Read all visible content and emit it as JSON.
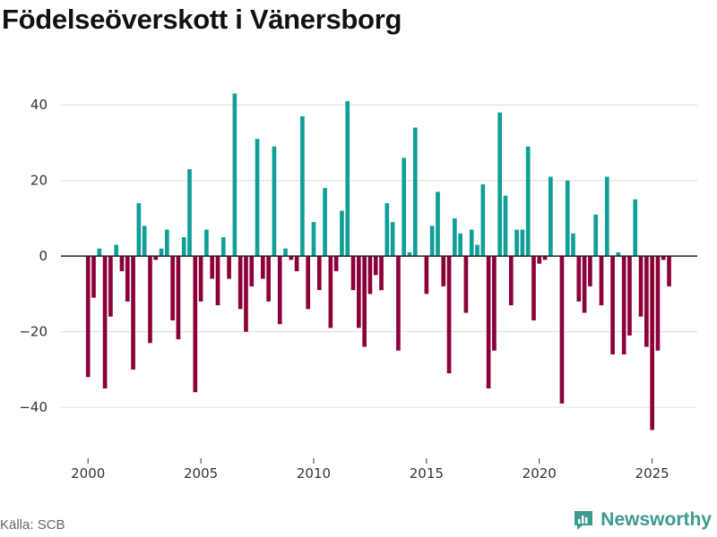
{
  "title": "Födelseöverskott i Vänersborg",
  "source": "Källa: SCB",
  "brand": "Newsworthy",
  "colors": {
    "positive": "#0f9f97",
    "negative": "#8c0039",
    "grid": "#dddddd",
    "zero": "#222222",
    "brand": "#3e9a8e"
  },
  "chart_data": {
    "type": "bar",
    "title": "Födelseöverskott i Vänersborg",
    "xlabel": "",
    "ylabel": "",
    "frequency": "quarterly",
    "start": 2000.0,
    "step": 0.25,
    "xlim": [
      1998.8,
      2027.0
    ],
    "ylim": [
      -53,
      50
    ],
    "xticks": [
      2000,
      2005,
      2010,
      2015,
      2020,
      2025
    ],
    "yticks": [
      -40,
      -20,
      0,
      20,
      40
    ],
    "values": [
      -32,
      -11,
      2,
      -35,
      -16,
      3,
      -4,
      -12,
      -30,
      14,
      8,
      -23,
      -1,
      2,
      7,
      -17,
      -22,
      5,
      23,
      -36,
      -12,
      7,
      -6,
      -13,
      5,
      -6,
      43,
      -14,
      -20,
      -8,
      31,
      -6,
      -12,
      29,
      -18,
      2,
      -1,
      -4,
      37,
      -14,
      9,
      -9,
      18,
      -19,
      -4,
      12,
      41,
      -9,
      -19,
      -24,
      -10,
      -5,
      -9,
      14,
      9,
      -25,
      26,
      1,
      34,
      0,
      -10,
      8,
      17,
      -8,
      -31,
      10,
      6,
      -15,
      7,
      3,
      19,
      -35,
      -25,
      38,
      16,
      -13,
      7,
      7,
      29,
      -17,
      -2,
      -1,
      21,
      0,
      -39,
      20,
      6,
      -12,
      -15,
      -8,
      11,
      -13,
      21,
      -26,
      1,
      -26,
      -21,
      15,
      -16,
      -24,
      -46,
      -25,
      -1,
      -8
    ]
  }
}
